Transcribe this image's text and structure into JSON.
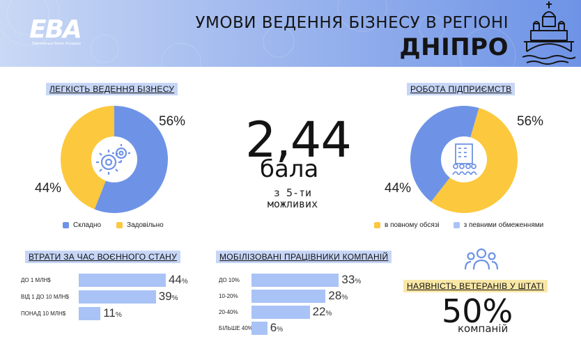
{
  "header": {
    "logo_text": "EBA",
    "logo_sub": "Європейська Бізнес Асоціація",
    "title_line1": "УМОВИ ВЕДЕННЯ БІЗНЕСУ В РЕГІОНІ",
    "title_line2": "ДНІПРО",
    "city_icon": "church-bridge-icon"
  },
  "colors": {
    "blue": "#6e93e6",
    "yellow": "#fcc83d",
    "bar": "#a9c3f7",
    "tag_blue": "#c7d6f6",
    "tag_yellow": "#f9e7a6"
  },
  "ease": {
    "tag": "ЛЕГКІСТЬ ВЕДЕННЯ БІЗНЕСУ",
    "pct_blue": "56%",
    "pct_yellow": "44%",
    "legend_blue": "Складно",
    "legend_yellow": "Задовільно",
    "icon": "gears-icon"
  },
  "score": {
    "value": "2,44",
    "unit": "бала",
    "sub_line1": "з 5-ти",
    "sub_line2": "можливих"
  },
  "work": {
    "tag": "РОБОТА ПІДПРИЄМСТВ",
    "pct_yellow": "56%",
    "pct_blue": "44%",
    "legend_yellow": "в повному обсязі",
    "legend_blue": "з певними обмеженнями",
    "icon": "office-building-icon"
  },
  "losses": {
    "tag": "ВТРАТИ ЗА ЧАС ВОЄННОГО СТАНУ",
    "rows": [
      {
        "label": "ДО 1 МЛН$",
        "value": 44
      },
      {
        "label": "ВІД 1 ДО 10 МЛН$",
        "value": 39
      },
      {
        "label": "ПОНАД 10 МЛН$",
        "value": 11
      }
    ]
  },
  "mobilized": {
    "tag": "МОБІЛІЗОВАНІ ПРАЦІВНИКИ КОМПАНІЙ",
    "rows": [
      {
        "label": "ДО 10%",
        "value": 33
      },
      {
        "label": "10-20%",
        "value": 28
      },
      {
        "label": "20-40%",
        "value": 22
      },
      {
        "label": "БІЛЬШЕ 40%",
        "value": 6
      }
    ]
  },
  "veterans": {
    "tag": "НАЯВНІСТЬ ВЕТЕРАНІВ У ШТАТІ",
    "value": "50%",
    "sub": "компаній",
    "icon": "people-group-icon"
  },
  "chart_data": [
    {
      "type": "pie",
      "title": "ЛЕГКІСТЬ ВЕДЕННЯ БІЗНЕСУ",
      "categories": [
        "Складно",
        "Задовільно"
      ],
      "values": [
        56,
        44
      ]
    },
    {
      "type": "pie",
      "title": "РОБОТА ПІДПРИЄМСТВ",
      "categories": [
        "в повному обсязі",
        "з певними обмеженнями"
      ],
      "values": [
        56,
        44
      ]
    },
    {
      "type": "bar",
      "title": "ВТРАТИ ЗА ЧАС ВОЄННОГО СТАНУ",
      "categories": [
        "ДО 1 МЛН$",
        "ВІД 1 ДО 10 МЛН$",
        "ПОНАД 10 МЛН$"
      ],
      "values": [
        44,
        39,
        11
      ]
    },
    {
      "type": "bar",
      "title": "МОБІЛІЗОВАНІ ПРАЦІВНИКИ КОМПАНІЙ",
      "categories": [
        "ДО 10%",
        "10-20%",
        "20-40%",
        "БІЛЬШЕ 40%"
      ],
      "values": [
        33,
        28,
        22,
        6
      ]
    }
  ]
}
